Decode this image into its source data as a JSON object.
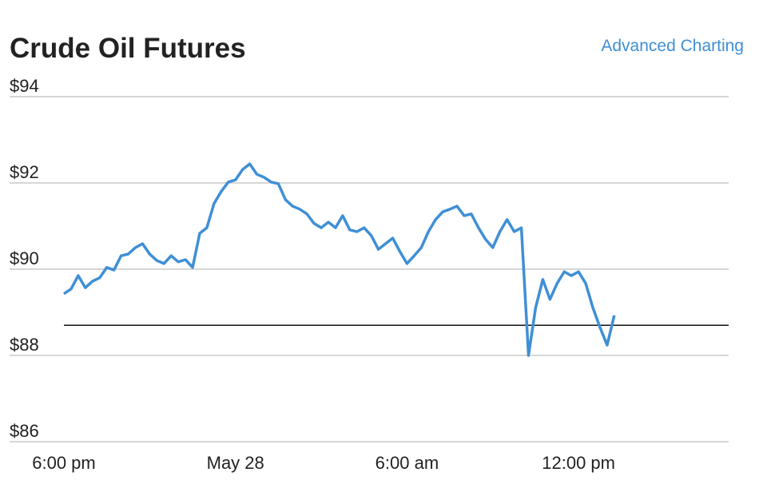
{
  "chart_data": {
    "type": "line",
    "title": "Crude Oil Futures",
    "link": "Advanced Charting",
    "categories": [
      "6:00 pm",
      null,
      null,
      null,
      null,
      null,
      null,
      null,
      null,
      null,
      null,
      null,
      null,
      null,
      null,
      null,
      null,
      null,
      null,
      null,
      null,
      null,
      null,
      null,
      "May 28",
      null,
      null,
      null,
      null,
      null,
      null,
      null,
      null,
      null,
      null,
      null,
      null,
      null,
      null,
      null,
      null,
      null,
      null,
      null,
      null,
      null,
      null,
      null,
      "6:00 am",
      null,
      null,
      null,
      null,
      null,
      null,
      null,
      null,
      null,
      null,
      null,
      null,
      null,
      null,
      null,
      null,
      null,
      null,
      null,
      null,
      null,
      null,
      null,
      "12:00 pm",
      null,
      null,
      null,
      null,
      null,
      null,
      null,
      null,
      null,
      null,
      null,
      null,
      null,
      null,
      null,
      null,
      null,
      null,
      null,
      null,
      null
    ],
    "series": [
      {
        "name": "Crude Oil Futures",
        "color": "#3f8fd5",
        "values": [
          89.43,
          89.54,
          89.85,
          89.57,
          89.72,
          89.8,
          90.04,
          89.98,
          90.31,
          90.35,
          90.5,
          90.59,
          90.35,
          90.2,
          90.13,
          90.31,
          90.17,
          90.22,
          90.04,
          90.83,
          90.96,
          91.52,
          91.8,
          92.02,
          92.07,
          92.31,
          92.44,
          92.2,
          92.13,
          92.02,
          91.98,
          91.61,
          91.46,
          91.39,
          91.28,
          91.06,
          90.96,
          91.09,
          90.96,
          91.24,
          90.91,
          90.87,
          90.96,
          90.78,
          90.46,
          90.59,
          90.72,
          90.41,
          90.13,
          90.31,
          90.5,
          90.87,
          91.15,
          91.33,
          91.39,
          91.46,
          91.24,
          91.28,
          90.96,
          90.69,
          90.5,
          90.87,
          91.15,
          90.87,
          90.96,
          88.0,
          89.11,
          89.76,
          89.3,
          89.67,
          89.94,
          89.85,
          89.94,
          89.67,
          89.11,
          88.65,
          88.24,
          88.93,
          null,
          null,
          null,
          null,
          null,
          null,
          null,
          null,
          null,
          null,
          null,
          null,
          null,
          null,
          null,
          null
        ]
      }
    ],
    "reference_line": 88.7,
    "ylim": [
      86,
      94
    ],
    "yticks": [
      {
        "value": 86,
        "label": "$86"
      },
      {
        "value": 88,
        "label": "$88"
      },
      {
        "value": 90,
        "label": "$90"
      },
      {
        "value": 92,
        "label": "$92"
      },
      {
        "value": 94,
        "label": "$94"
      }
    ],
    "grid": true
  }
}
